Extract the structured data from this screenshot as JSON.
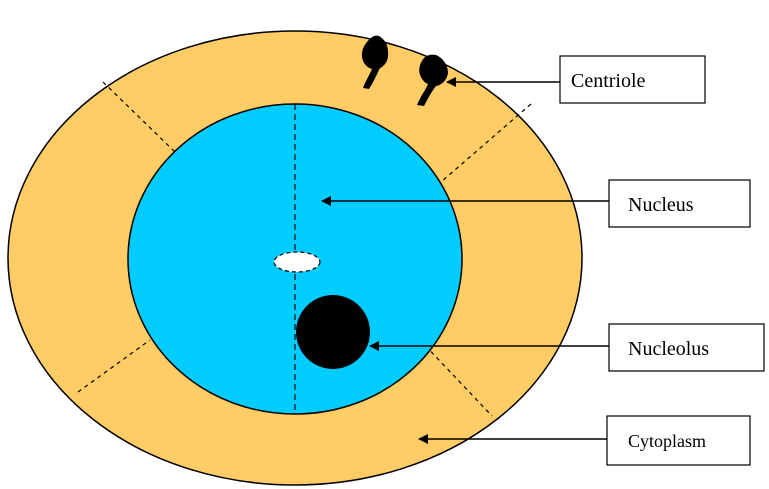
{
  "diagram": {
    "labels": {
      "centriole": "Centriole",
      "nucleus": "Nucleus",
      "nucleolus": "Nucleolus",
      "cytoplasm": "Cytoplasm"
    }
  },
  "colors": {
    "cytoplasm": "#FFCC66",
    "nucleus": "#00CCFF",
    "nucleolus": "#000000",
    "vacuole": "#FFFFFF",
    "outline": "#000000",
    "label_box": "#FFFFFF"
  }
}
